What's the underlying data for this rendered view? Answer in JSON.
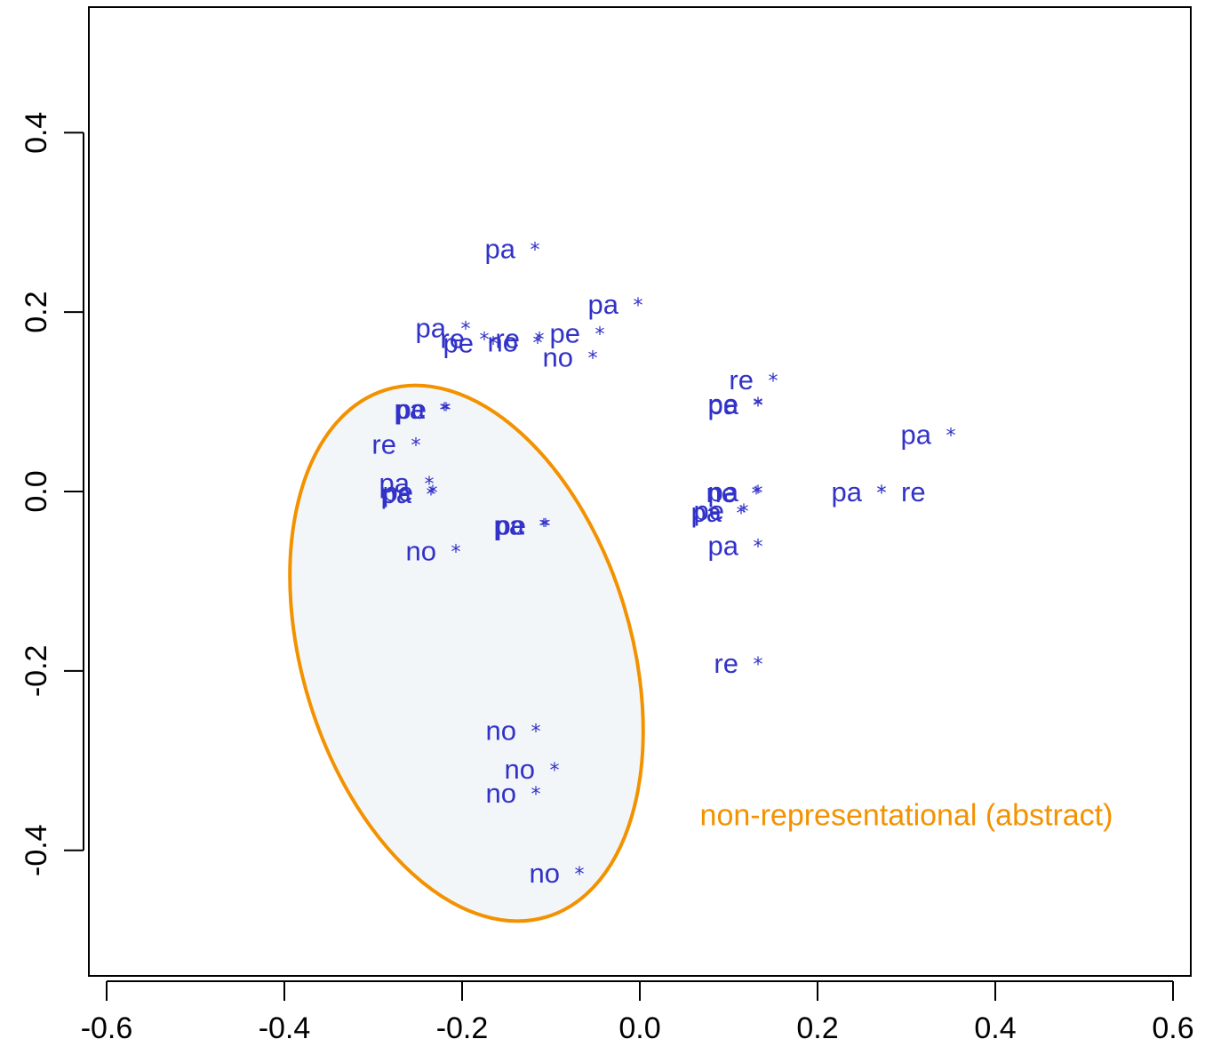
{
  "colors": {
    "points": "#3232c8",
    "ellipse_stroke": "#f39200",
    "ellipse_fill": "#f3f6f9",
    "annotation": "#f39200",
    "axis": "#000000"
  },
  "chart_data": {
    "type": "scatter",
    "title": "",
    "xlabel": "",
    "ylabel": "",
    "xlim": [
      -0.62,
      0.62
    ],
    "ylim": [
      -0.54,
      0.54
    ],
    "grid": false,
    "x_ticks": [
      "-0.6",
      "-0.4",
      "-0.2",
      "0.0",
      "0.2",
      "0.4",
      "0.6"
    ],
    "y_ticks": [
      "-0.4",
      "-0.2",
      "0.0",
      "0.2",
      "0.4"
    ],
    "marker": "*",
    "points": [
      {
        "x": -0.118,
        "y": 0.271,
        "label": "pa"
      },
      {
        "x": -0.002,
        "y": 0.209,
        "label": "pa"
      },
      {
        "x": -0.115,
        "y": 0.167,
        "label": "no"
      },
      {
        "x": -0.196,
        "y": 0.183,
        "label": "pa"
      },
      {
        "x": -0.175,
        "y": 0.171,
        "label": "re"
      },
      {
        "x": -0.165,
        "y": 0.166,
        "label": "pe"
      },
      {
        "x": -0.113,
        "y": 0.171,
        "label": "re"
      },
      {
        "x": -0.045,
        "y": 0.177,
        "label": "pe"
      },
      {
        "x": -0.053,
        "y": 0.15,
        "label": "no"
      },
      {
        "x": 0.15,
        "y": 0.125,
        "label": "re"
      },
      {
        "x": 0.133,
        "y": 0.098,
        "label": "pe"
      },
      {
        "x": 0.133,
        "y": 0.097,
        "label": "pa"
      },
      {
        "x": 0.35,
        "y": 0.064,
        "label": "pa"
      },
      {
        "x": -0.218,
        "y": 0.092,
        "label": "pe"
      },
      {
        "x": -0.22,
        "y": 0.092,
        "label": "pa"
      },
      {
        "x": -0.252,
        "y": 0.053,
        "label": "re"
      },
      {
        "x": -0.237,
        "y": 0.01,
        "label": "pa"
      },
      {
        "x": -0.233,
        "y": 0.0,
        "label": "pe"
      },
      {
        "x": -0.235,
        "y": -0.002,
        "label": "pa"
      },
      {
        "x": -0.106,
        "y": -0.037,
        "label": "pe"
      },
      {
        "x": -0.108,
        "y": -0.037,
        "label": "pa"
      },
      {
        "x": -0.207,
        "y": -0.066,
        "label": "no"
      },
      {
        "x": 0.133,
        "y": 0.0,
        "label": "pa"
      },
      {
        "x": 0.131,
        "y": -0.001,
        "label": "ne"
      },
      {
        "x": 0.117,
        "y": -0.021,
        "label": "pe"
      },
      {
        "x": 0.114,
        "y": -0.023,
        "label": "pa"
      },
      {
        "x": 0.272,
        "y": 0.0,
        "label": "pa"
      },
      {
        "x": 0.272,
        "y": 0.0,
        "label": "re"
      },
      {
        "x": 0.133,
        "y": -0.06,
        "label": "pa"
      },
      {
        "x": 0.133,
        "y": -0.191,
        "label": "re"
      },
      {
        "x": -0.117,
        "y": -0.266,
        "label": "no"
      },
      {
        "x": -0.096,
        "y": -0.309,
        "label": "no"
      },
      {
        "x": -0.117,
        "y": -0.336,
        "label": "no"
      },
      {
        "x": -0.068,
        "y": -0.425,
        "label": "no"
      }
    ],
    "annotations": [
      {
        "text": "non-representational (abstract)",
        "x": 0.3,
        "y": -0.36
      }
    ]
  }
}
